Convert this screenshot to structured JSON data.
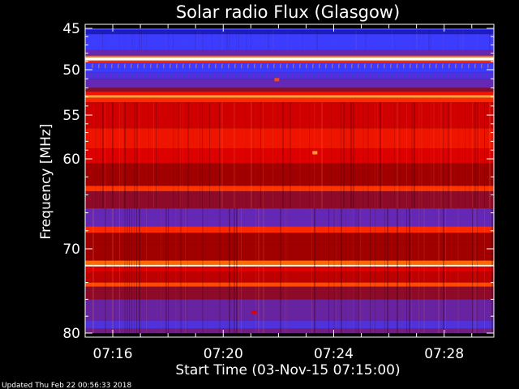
{
  "chart_data": {
    "type": "heatmap",
    "title": "Solar radio Flux (Glasgow)",
    "xlabel": "Start Time (03-Nov-15 07:15:00)",
    "ylabel": "Frequency [MHz]",
    "x_ticks": [
      "07:16",
      "07:20",
      "07:24",
      "07:28"
    ],
    "x_tick_minutes": [
      16,
      20,
      24,
      28
    ],
    "xlim_minutes": [
      15,
      29.8
    ],
    "y_ticks": [
      45,
      50,
      55,
      60,
      70,
      80
    ],
    "ylim": [
      45,
      80
    ],
    "colormap": [
      "#000000",
      "#1e1ebe",
      "#3c3cff",
      "#6428b4",
      "#7a1450",
      "#a00000",
      "#dc0000",
      "#ff2800",
      "#ff6a00",
      "#ffd278",
      "#ffffff"
    ],
    "bands": [
      {
        "from": 45.0,
        "to": 45.2,
        "level": 0.2
      },
      {
        "from": 45.2,
        "to": 45.7,
        "level": 0.1
      },
      {
        "from": 45.7,
        "to": 47.6,
        "level": 0.2
      },
      {
        "from": 47.6,
        "to": 48.3,
        "level": 0.3
      },
      {
        "from": 48.3,
        "to": 48.5,
        "level": 0.8
      },
      {
        "from": 48.5,
        "to": 48.9,
        "level": 1.0
      },
      {
        "from": 48.9,
        "to": 49.2,
        "level": 0.7
      },
      {
        "from": 49.2,
        "to": 50.3,
        "level": 0.2
      },
      {
        "from": 50.3,
        "to": 51.0,
        "level": 0.25
      },
      {
        "from": 51.0,
        "to": 52.0,
        "level": 0.3
      },
      {
        "from": 52.0,
        "to": 52.4,
        "level": 0.45
      },
      {
        "from": 52.4,
        "to": 52.8,
        "level": 0.65
      },
      {
        "from": 52.8,
        "to": 53.1,
        "level": 0.85
      },
      {
        "from": 53.1,
        "to": 53.6,
        "level": 0.7
      },
      {
        "from": 53.6,
        "to": 56.5,
        "level": 0.58
      },
      {
        "from": 56.5,
        "to": 58.8,
        "level": 0.65
      },
      {
        "from": 58.8,
        "to": 60.5,
        "level": 0.6
      },
      {
        "from": 60.5,
        "to": 63.0,
        "level": 0.5
      },
      {
        "from": 63.0,
        "to": 63.6,
        "level": 0.72
      },
      {
        "from": 63.6,
        "to": 65.5,
        "level": 0.45
      },
      {
        "from": 65.5,
        "to": 67.5,
        "level": 0.3
      },
      {
        "from": 67.5,
        "to": 68.2,
        "level": 0.7
      },
      {
        "from": 68.2,
        "to": 69.5,
        "level": 0.5
      },
      {
        "from": 69.5,
        "to": 71.4,
        "level": 0.5
      },
      {
        "from": 71.4,
        "to": 71.9,
        "level": 0.8
      },
      {
        "from": 71.9,
        "to": 72.1,
        "level": 1.0
      },
      {
        "from": 72.1,
        "to": 72.7,
        "level": 0.6
      },
      {
        "from": 72.7,
        "to": 74.0,
        "level": 0.55
      },
      {
        "from": 74.0,
        "to": 74.5,
        "level": 0.75
      },
      {
        "from": 74.5,
        "to": 76.0,
        "level": 0.45
      },
      {
        "from": 76.0,
        "to": 78.5,
        "level": 0.32
      },
      {
        "from": 78.5,
        "to": 79.5,
        "level": 0.25
      },
      {
        "from": 79.5,
        "to": 80.0,
        "level": 0.35
      }
    ],
    "bursts": [
      {
        "minute": 21.94,
        "freq": 51.1,
        "level": 0.75
      },
      {
        "minute": 23.32,
        "freq": 59.3,
        "level": 0.85
      },
      {
        "minute": 21.12,
        "freq": 77.5,
        "level": 0.6
      }
    ]
  },
  "footer": "Updated Thu Feb 22 00:56:33 2018"
}
